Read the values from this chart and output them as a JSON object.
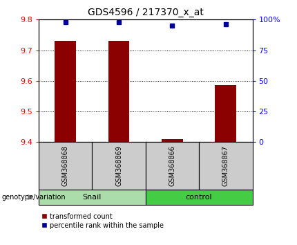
{
  "title": "GDS4596 / 217370_x_at",
  "samples": [
    "GSM368868",
    "GSM368869",
    "GSM368866",
    "GSM368867"
  ],
  "groups": [
    "Snail",
    "Snail",
    "control",
    "control"
  ],
  "group_colors": {
    "Snail": "#aaddaa",
    "control": "#44cc44"
  },
  "bar_values": [
    9.73,
    9.73,
    9.41,
    9.585
  ],
  "percentile_values": [
    98,
    98,
    95,
    96
  ],
  "ylim_left": [
    9.4,
    9.8
  ],
  "ylim_right": [
    0,
    100
  ],
  "yticks_left": [
    9.4,
    9.5,
    9.6,
    9.7,
    9.8
  ],
  "yticks_right": [
    0,
    25,
    50,
    75,
    100
  ],
  "ytick_labels_right": [
    "0",
    "25",
    "50",
    "75",
    "100%"
  ],
  "bar_color": "#8B0000",
  "marker_color": "#000099",
  "bar_width": 0.4,
  "background_color": "#ffffff",
  "sample_box_color": "#cccccc",
  "legend_items": [
    "transformed count",
    "percentile rank within the sample"
  ]
}
